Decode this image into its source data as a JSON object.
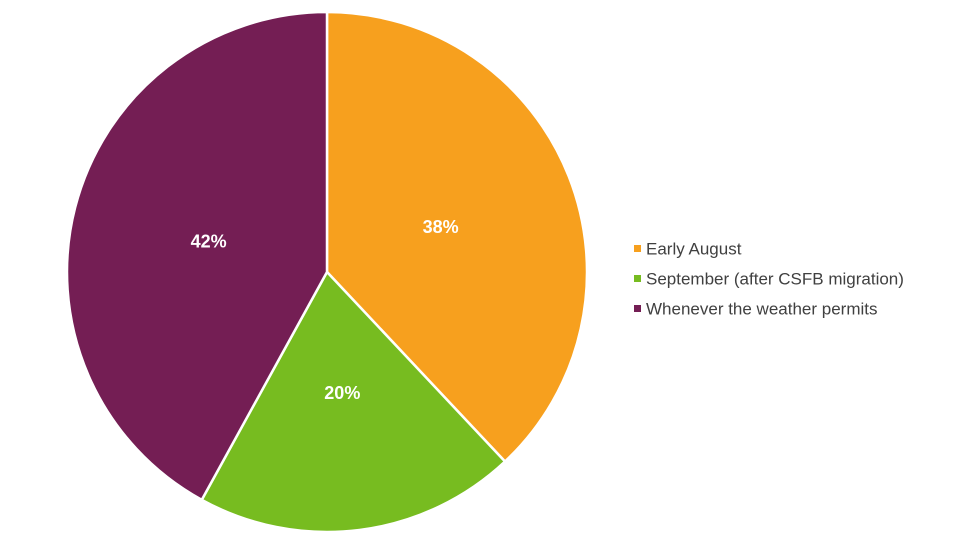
{
  "chart_data": {
    "type": "pie",
    "title": "",
    "categories": [
      "Early August",
      "September (after CSFB migration)",
      "Whenever the weather permits"
    ],
    "values": [
      38,
      20,
      42
    ],
    "value_labels": [
      "38%",
      "20%",
      "42%"
    ],
    "colors": [
      "#F7A01E",
      "#77BC20",
      "#741E54"
    ],
    "legend_position": "right",
    "start_angle": "12 o'clock",
    "direction": "clockwise"
  }
}
